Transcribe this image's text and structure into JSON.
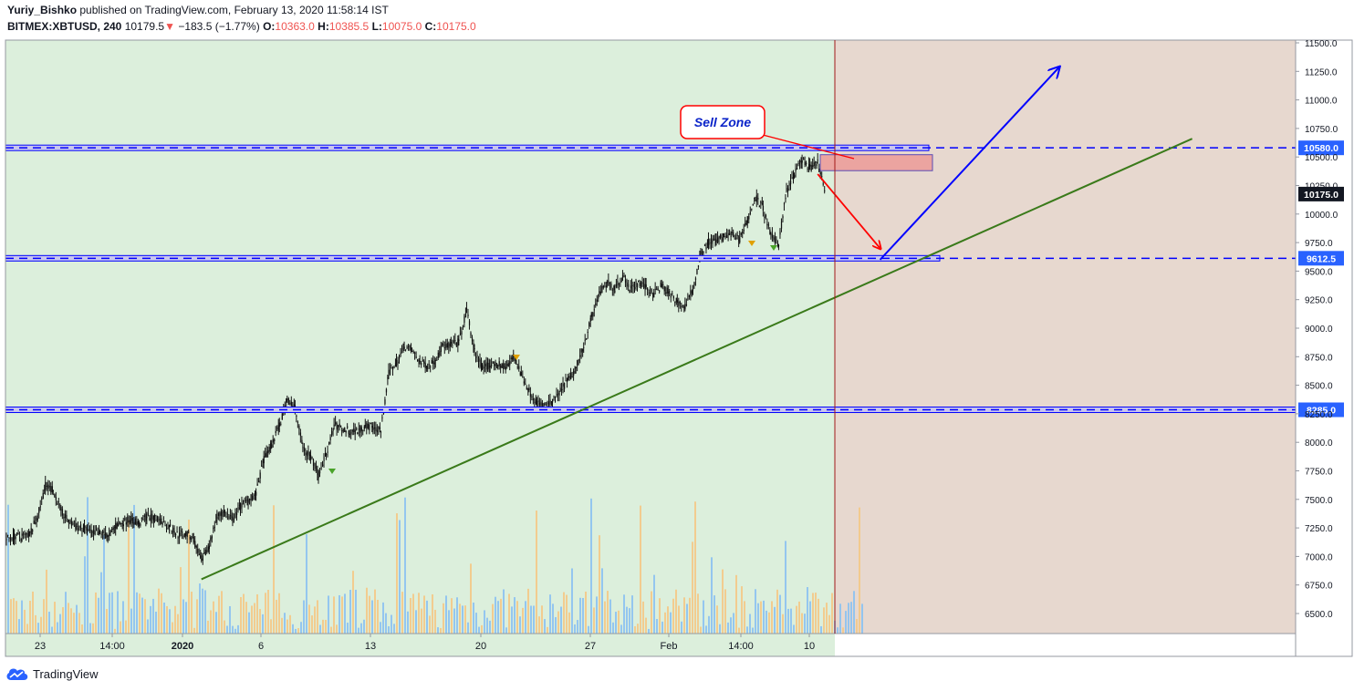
{
  "header": {
    "author": "Yuriy_Bishko",
    "published": "published on TradingView.com, February 13, 2020 11:58:14 IST",
    "symbol": "BITMEX:XBTUSD, 240",
    "last": "10179.5",
    "change_arrow": "▼",
    "change": "−183.5 (−1.77%)",
    "o_label": "O:",
    "o_value": "10363.0",
    "h_label": "H:",
    "h_value": "10385.5",
    "l_label": "L:",
    "l_value": "10075.0",
    "c_label": "C:",
    "c_value": "10175.0"
  },
  "brand": "TradingView",
  "colors": {
    "bg_green": "#dcefdc",
    "bg_pink": "#e7d8cf",
    "level_blue": "#0000ff",
    "trend_green": "#3a7a1a",
    "red_arrow": "#ff0000",
    "price_box": "#131722",
    "zone_fill": "#eba4a0"
  },
  "chart_data": {
    "type": "candlestick",
    "y_axis_ticks": [
      11500,
      11250,
      11000,
      10750,
      10500,
      10250,
      10000,
      9750,
      9500,
      9250,
      9000,
      8750,
      8500,
      8250,
      8000,
      7750,
      7500,
      7250,
      7000,
      6750,
      6500
    ],
    "y_tick_labels": [
      "11500.0",
      "11250.0",
      "11000.0",
      "10750.0",
      "10500.0",
      "10250.0",
      "10000.0",
      "9750.0",
      "9500.0",
      "9250.0",
      "9000.0",
      "8750.0",
      "8500.0",
      "8250.0",
      "8000.0",
      "7750.0",
      "7500.0",
      "7250.0",
      "7000.0",
      "6750.0",
      "6500.0"
    ],
    "ylim": [
      6350,
      11550
    ],
    "x_tick_labels": [
      "23",
      "14:00",
      "2020",
      "6",
      "13",
      "20",
      "27",
      "Feb",
      "14:00",
      "10"
    ],
    "x_tick_bold": [
      false,
      false,
      true,
      false,
      false,
      false,
      false,
      false,
      false,
      false
    ],
    "x_range": [
      "Dec 21 2019",
      "Feb 27 2020"
    ],
    "price_levels": [
      {
        "value": 10580.0,
        "label": "10580.0"
      },
      {
        "value": 9612.5,
        "label": "9612.5"
      },
      {
        "value": 8285.0,
        "label": "8285.0"
      }
    ],
    "current_price": {
      "value": 10175.0,
      "label": "10175.0"
    },
    "annotation": "Sell Zone",
    "price_path": [
      [
        0,
        7150
      ],
      [
        1,
        7180
      ],
      [
        2,
        7170
      ],
      [
        3,
        7200
      ],
      [
        4,
        7350
      ],
      [
        5,
        7620
      ],
      [
        6,
        7580
      ],
      [
        7,
        7400
      ],
      [
        8,
        7300
      ],
      [
        9,
        7260
      ],
      [
        10,
        7240
      ],
      [
        11,
        7200
      ],
      [
        12,
        7220
      ],
      [
        13,
        7170
      ],
      [
        14,
        7260
      ],
      [
        15,
        7300
      ],
      [
        16,
        7330
      ],
      [
        17,
        7280
      ],
      [
        18,
        7350
      ],
      [
        19,
        7330
      ],
      [
        20,
        7310
      ],
      [
        21,
        7250
      ],
      [
        22,
        7190
      ],
      [
        23,
        7200
      ],
      [
        24,
        7150
      ],
      [
        25,
        6950
      ],
      [
        26,
        7100
      ],
      [
        27,
        7350
      ],
      [
        28,
        7380
      ],
      [
        29,
        7320
      ],
      [
        30,
        7440
      ],
      [
        31,
        7500
      ],
      [
        32,
        7550
      ],
      [
        33,
        7850
      ],
      [
        34,
        7980
      ],
      [
        35,
        8150
      ],
      [
        36,
        8380
      ],
      [
        37,
        8300
      ],
      [
        38,
        7950
      ],
      [
        39,
        7870
      ],
      [
        40,
        7720
      ],
      [
        41,
        7900
      ],
      [
        42,
        8150
      ],
      [
        43,
        8120
      ],
      [
        44,
        8100
      ],
      [
        45,
        8100
      ],
      [
        46,
        8150
      ],
      [
        47,
        8130
      ],
      [
        48,
        8100
      ],
      [
        49,
        8600
      ],
      [
        50,
        8700
      ],
      [
        51,
        8850
      ],
      [
        52,
        8800
      ],
      [
        53,
        8700
      ],
      [
        54,
        8670
      ],
      [
        55,
        8720
      ],
      [
        56,
        8850
      ],
      [
        57,
        8850
      ],
      [
        58,
        8880
      ],
      [
        59,
        9150
      ],
      [
        60,
        8800
      ],
      [
        61,
        8650
      ],
      [
        62,
        8680
      ],
      [
        63,
        8680
      ],
      [
        64,
        8660
      ],
      [
        65,
        8750
      ],
      [
        66,
        8600
      ],
      [
        67,
        8450
      ],
      [
        68,
        8350
      ],
      [
        69,
        8320
      ],
      [
        70,
        8350
      ],
      [
        71,
        8450
      ],
      [
        72,
        8550
      ],
      [
        73,
        8650
      ],
      [
        74,
        8850
      ],
      [
        75,
        9100
      ],
      [
        76,
        9300
      ],
      [
        77,
        9400
      ],
      [
        78,
        9350
      ],
      [
        79,
        9450
      ],
      [
        80,
        9350
      ],
      [
        81,
        9400
      ],
      [
        82,
        9350
      ],
      [
        83,
        9300
      ],
      [
        84,
        9380
      ],
      [
        85,
        9300
      ],
      [
        86,
        9230
      ],
      [
        87,
        9180
      ],
      [
        88,
        9350
      ],
      [
        89,
        9650
      ],
      [
        90,
        9750
      ],
      [
        91,
        9780
      ],
      [
        92,
        9800
      ],
      [
        93,
        9820
      ],
      [
        94,
        9780
      ],
      [
        95,
        9950
      ],
      [
        96,
        10150
      ],
      [
        97,
        10050
      ],
      [
        98,
        9800
      ],
      [
        99,
        9750
      ],
      [
        100,
        10200
      ],
      [
        101,
        10350
      ],
      [
        102,
        10480
      ],
      [
        103,
        10400
      ],
      [
        104,
        10450
      ],
      [
        105,
        10175
      ]
    ],
    "trendlines": [
      {
        "name": "support",
        "from": [
          25,
          6800
        ],
        "to": [
          152,
          10660
        ]
      },
      {
        "name": "sell-arrow",
        "from": [
          104,
          10350
        ],
        "to": [
          112,
          9700
        ]
      },
      {
        "name": "buy-arrow",
        "from": [
          112,
          9600
        ],
        "to": [
          135,
          11290
        ]
      }
    ]
  }
}
